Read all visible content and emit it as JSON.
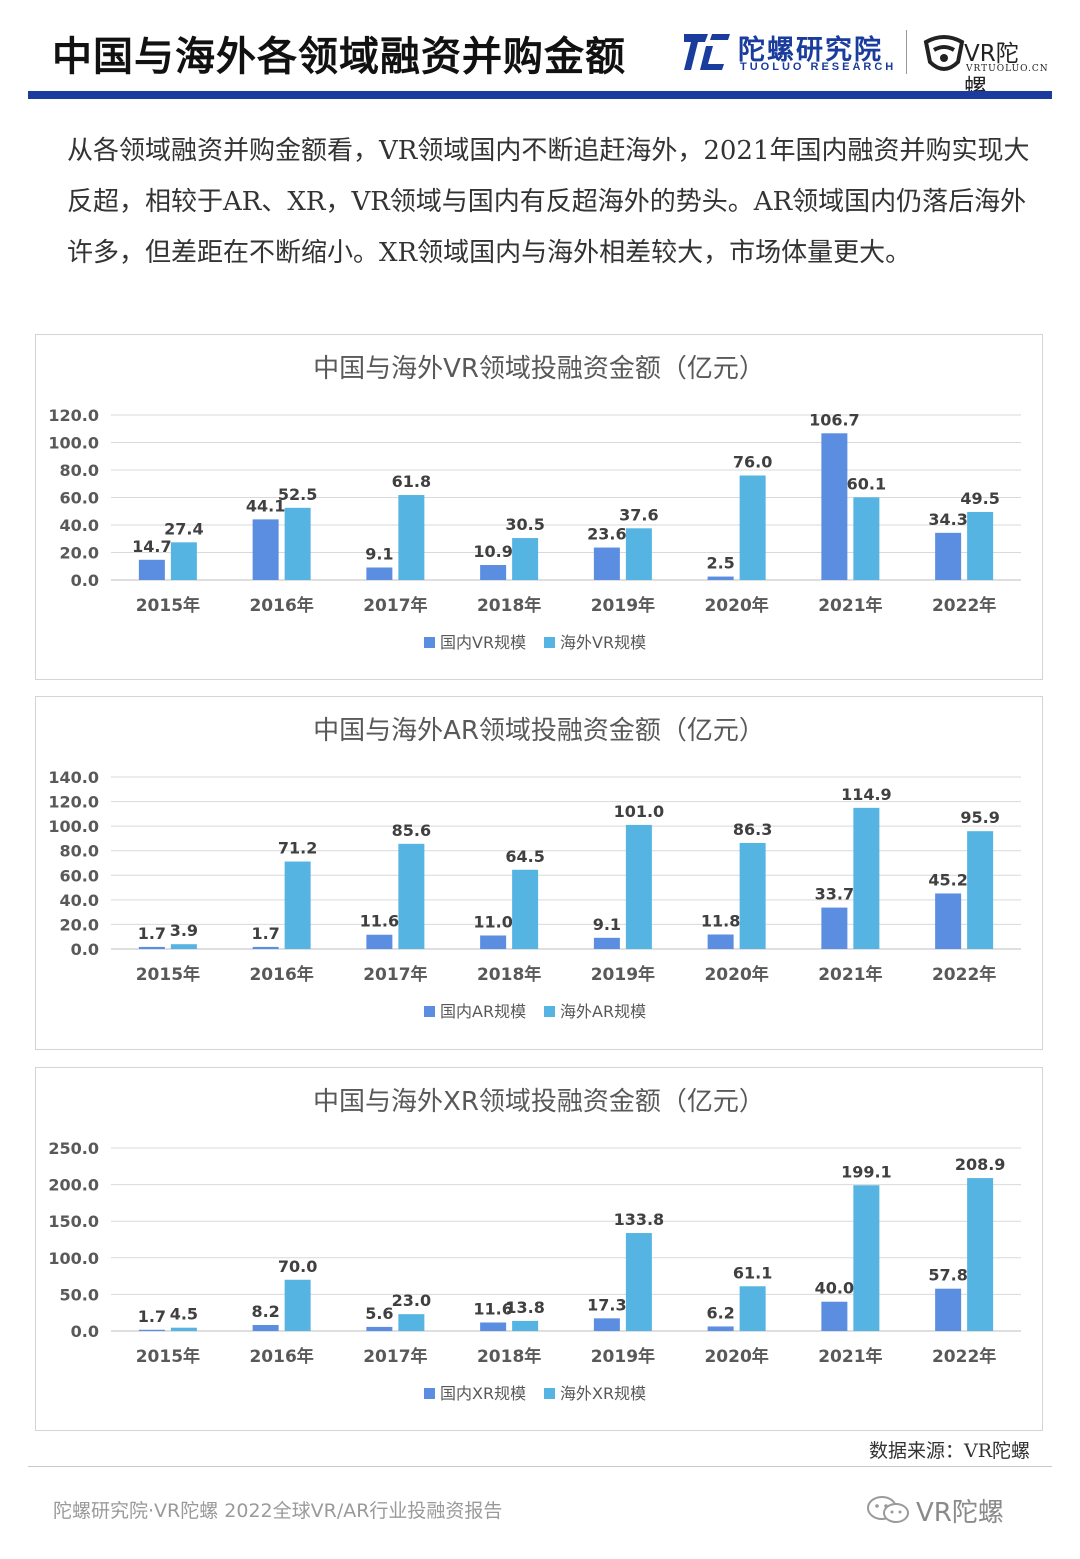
{
  "header": {
    "title": "中国与海外各领域融资并购金额",
    "brand_cn": "陀螺研究院",
    "brand_en": "TUOLUO RESEARCH",
    "vr_brand": "VR陀螺",
    "vr_url": "VRTUOLUO.CN"
  },
  "intro": "从各领域融资并购金额看，VR领域国内不断追赶海外，2021年国内融资并购实现大反超，相较于AR、XR，VR领域与国内有反超海外的势头。AR领域国内仍落后海外许多，但差距在不断缩小。XR领域国内与海外相差较大，市场体量更大。",
  "colors": {
    "domestic": "#5b8ee0",
    "overseas": "#55b4e2",
    "accent": "#1a3c9c"
  },
  "chart_data": [
    {
      "type": "bar",
      "title": "中国与海外VR领域投融资金额（亿元）",
      "categories": [
        "2015年",
        "2016年",
        "2017年",
        "2018年",
        "2019年",
        "2020年",
        "2021年",
        "2022年"
      ],
      "series": [
        {
          "name": "国内VR规模",
          "values": [
            14.7,
            44.1,
            9.1,
            10.9,
            23.6,
            2.5,
            106.7,
            34.3
          ]
        },
        {
          "name": "海外VR规模",
          "values": [
            27.4,
            52.5,
            61.8,
            30.5,
            37.6,
            76.0,
            60.1,
            49.5
          ]
        }
      ],
      "yticks": [
        0,
        20,
        40,
        60,
        80,
        100,
        120
      ],
      "ylim": [
        0,
        120
      ],
      "legend": "bottom"
    },
    {
      "type": "bar",
      "title": "中国与海外AR领域投融资金额（亿元）",
      "categories": [
        "2015年",
        "2016年",
        "2017年",
        "2018年",
        "2019年",
        "2020年",
        "2021年",
        "2022年"
      ],
      "series": [
        {
          "name": "国内AR规模",
          "values": [
            1.7,
            1.7,
            11.6,
            11.0,
            9.1,
            11.8,
            33.7,
            45.2
          ]
        },
        {
          "name": "海外AR规模",
          "values": [
            3.9,
            71.2,
            85.6,
            64.5,
            101.0,
            86.3,
            114.9,
            95.9
          ]
        }
      ],
      "yticks": [
        0,
        20,
        40,
        60,
        80,
        100,
        120,
        140
      ],
      "ylim": [
        0,
        140
      ],
      "legend": "bottom"
    },
    {
      "type": "bar",
      "title": "中国与海外XR领域投融资金额（亿元）",
      "categories": [
        "2015年",
        "2016年",
        "2017年",
        "2018年",
        "2019年",
        "2020年",
        "2021年",
        "2022年"
      ],
      "series": [
        {
          "name": "国内XR规模",
          "values": [
            1.7,
            8.2,
            5.6,
            11.6,
            17.3,
            6.2,
            40.0,
            57.8
          ]
        },
        {
          "name": "海外XR规模",
          "values": [
            4.5,
            70.0,
            23.0,
            13.8,
            133.8,
            61.1,
            199.1,
            208.9
          ]
        }
      ],
      "yticks": [
        0,
        50,
        100,
        150,
        200,
        250
      ],
      "ylim": [
        0,
        250
      ],
      "legend": "bottom"
    }
  ],
  "source": "数据来源：VR陀螺",
  "footer": "陀螺研究院·VR陀螺 2022全球VR/AR行业投融资报告",
  "wechat_name": "VR陀螺"
}
